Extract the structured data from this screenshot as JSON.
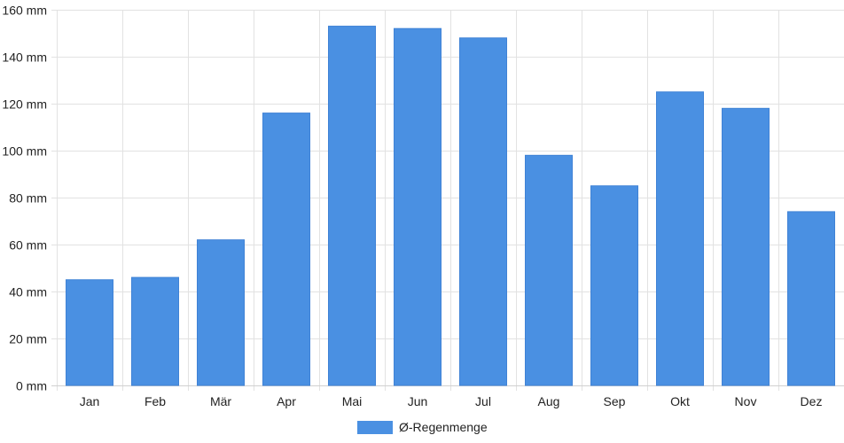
{
  "chart_data": {
    "type": "bar",
    "categories": [
      "Jan",
      "Feb",
      "Mär",
      "Apr",
      "Mai",
      "Jun",
      "Jul",
      "Aug",
      "Sep",
      "Okt",
      "Nov",
      "Dez"
    ],
    "series": [
      {
        "name": "Ø-Regenmenge",
        "values": [
          45,
          46,
          62,
          116,
          153,
          152,
          148,
          98,
          85,
          125,
          118,
          74
        ],
        "color": "#4a90e2"
      }
    ],
    "y_ticks": [
      "0 mm",
      "20 mm",
      "40 mm",
      "60 mm",
      "80 mm",
      "100 mm",
      "120 mm",
      "140 mm",
      "160 mm"
    ],
    "ylim": [
      0,
      160
    ],
    "y_unit": "mm",
    "grid": true,
    "legend_position": "bottom-center",
    "title": "",
    "xlabel": "",
    "ylabel": ""
  }
}
